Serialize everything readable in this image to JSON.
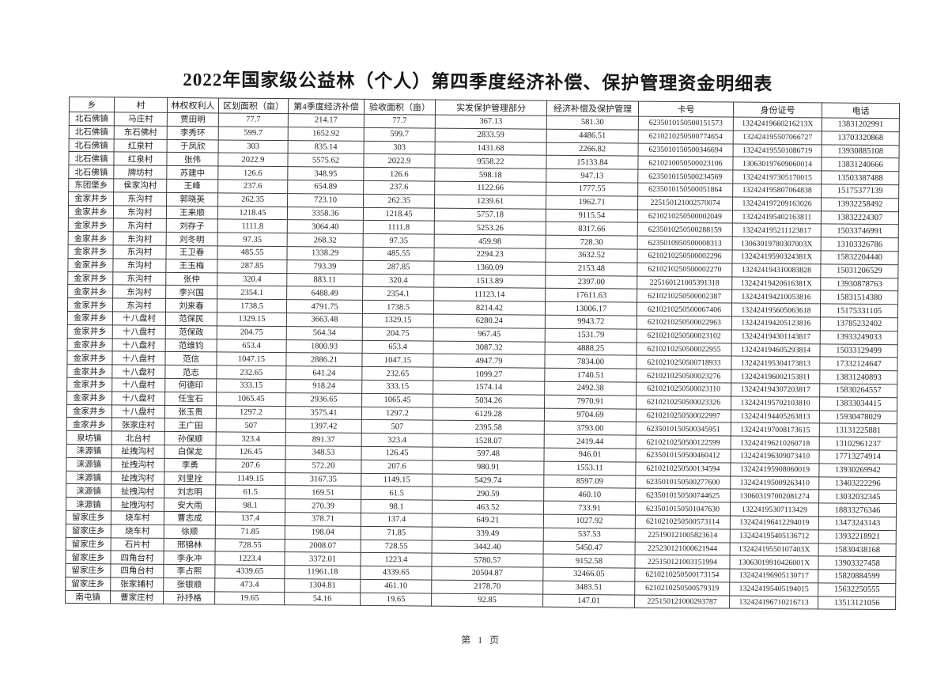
{
  "page": {
    "title": "2022年国家级公益林（个人）第四季度经济补偿、保护管理资金明细表",
    "footer": "第 1 页"
  },
  "table": {
    "headers": [
      "乡",
      "村",
      "林权权利人",
      "区划面积（亩）",
      "第4季度经济补偿",
      "验收面积（亩）",
      "实发保护管理部分",
      "经济补偿及保护管理",
      "卡号",
      "身份证号",
      "电话"
    ],
    "rows": [
      [
        "北石佛镇",
        "马庄村",
        "贾田明",
        "77.7",
        "214.17",
        "77.7",
        "367.13",
        "581.30",
        "6235010150500151573",
        "13242419660216213X",
        "13831202991"
      ],
      [
        "北石佛镇",
        "东石佛村",
        "李秀环",
        "599.7",
        "1652.92",
        "599.7",
        "2833.59",
        "4486.51",
        "6210210250500774654",
        "132424195507066727",
        "13703320868"
      ],
      [
        "北石佛镇",
        "红泉村",
        "于凤欣",
        "303",
        "835.14",
        "303",
        "1431.68",
        "2266.82",
        "6235010150500346694",
        "132424195501086719",
        "13930885108"
      ],
      [
        "北石佛镇",
        "红泉村",
        "张伟",
        "2022.9",
        "5575.62",
        "2022.9",
        "9558.22",
        "15133.84",
        "6210210050500023106",
        "130630197609060014",
        "13831240666"
      ],
      [
        "北石佛镇",
        "牌坊村",
        "苏建中",
        "126.6",
        "348.95",
        "126.6",
        "598.18",
        "947.13",
        "6235010150500234569",
        "132424197305170015",
        "13503387488"
      ],
      [
        "东团堡乡",
        "侯家沟村",
        "王峰",
        "237.6",
        "654.89",
        "237.6",
        "1122.66",
        "1777.55",
        "6235010150500051864",
        "132424195807064838",
        "15175377139"
      ],
      [
        "金家井乡",
        "东沟村",
        "郭晓英",
        "262.35",
        "723.10",
        "262.35",
        "1239.61",
        "1962.71",
        "225150121002570074",
        "132424197209163026",
        "13932258492"
      ],
      [
        "金家井乡",
        "东沟村",
        "王来顺",
        "1218.45",
        "3358.36",
        "1218.45",
        "5757.18",
        "9115.54",
        "6210210250500002049",
        "132424195402163811",
        "13832224307"
      ],
      [
        "金家井乡",
        "东沟村",
        "刘存子",
        "1111.8",
        "3064.40",
        "1111.8",
        "5253.26",
        "8317.66",
        "6235010250500288159",
        "132424195211123817",
        "15033746991"
      ],
      [
        "金家井乡",
        "东沟村",
        "刘冬明",
        "97.35",
        "268.32",
        "97.35",
        "459.98",
        "728.30",
        "6235010950500008313",
        "13063019780307003X",
        "13103326786"
      ],
      [
        "金家井乡",
        "东沟村",
        "王卫春",
        "485.55",
        "1338.29",
        "485.55",
        "2294.23",
        "3632.52",
        "6210210250500002296",
        "13242419590324381X",
        "15832204440"
      ],
      [
        "金家井乡",
        "东沟村",
        "王玉梅",
        "287.85",
        "793.39",
        "287.85",
        "1360.09",
        "2153.48",
        "6210210250500002270",
        "132424194310083828",
        "15031206529"
      ],
      [
        "金家井乡",
        "东沟村",
        "张仲",
        "320.4",
        "883.11",
        "320.4",
        "1513.89",
        "2397.00",
        "225160121005391318",
        "13242419420616381X",
        "13930878763"
      ],
      [
        "金家井乡",
        "东沟村",
        "李兴国",
        "2354.1",
        "6488.49",
        "2354.1",
        "11123.14",
        "17611.63",
        "6210210250500002387",
        "132424194210053816",
        "15831514380"
      ],
      [
        "金家井乡",
        "东沟村",
        "刘来春",
        "1738.5",
        "4791.75",
        "1738.5",
        "8214.42",
        "13006.17",
        "6210210250500067406",
        "132424195605063618",
        "15175331105"
      ],
      [
        "金家井乡",
        "十八盘村",
        "范保民",
        "1329.15",
        "3663.48",
        "1329.15",
        "6280.24",
        "9943.72",
        "6210210250500022963",
        "132424194205123816",
        "13785232402"
      ],
      [
        "金家井乡",
        "十八盘村",
        "范保政",
        "204.75",
        "564.34",
        "204.75",
        "967.45",
        "1531.79",
        "6210210250500023102",
        "132424194301143817",
        "13933249033"
      ],
      [
        "金家井乡",
        "十八盘村",
        "范维钧",
        "653.4",
        "1800.93",
        "653.4",
        "3087.32",
        "4888.25",
        "6210210250500022955",
        "132424194605293814",
        "15033129499"
      ],
      [
        "金家井乡",
        "十八盘村",
        "范信",
        "1047.15",
        "2886.21",
        "1047.15",
        "4947.79",
        "7834.00",
        "6210210250500718933",
        "132424195304173813",
        "17332124647"
      ],
      [
        "金家井乡",
        "十八盘村",
        "范志",
        "232.65",
        "641.24",
        "232.65",
        "1099.27",
        "1740.51",
        "6210210250500023276",
        "132424196002153811",
        "13831240893"
      ],
      [
        "金家井乡",
        "十八盘村",
        "何德印",
        "333.15",
        "918.24",
        "333.15",
        "1574.14",
        "2492.38",
        "6210210250500023110",
        "132424194307203817",
        "15830264557"
      ],
      [
        "金家井乡",
        "十八盘村",
        "任宝石",
        "1065.45",
        "2936.65",
        "1065.45",
        "5034.26",
        "7970.91",
        "6210210250500023326",
        "132424195702103810",
        "13833034415"
      ],
      [
        "金家井乡",
        "十八盘村",
        "张玉贵",
        "1297.2",
        "3575.41",
        "1297.2",
        "6129.28",
        "9704.69",
        "6210210250500022997",
        "132424194405263813",
        "15930478029"
      ],
      [
        "金家井乡",
        "张家庄村",
        "王广田",
        "507",
        "1397.42",
        "507",
        "2395.58",
        "3793.00",
        "6235010150500345951",
        "132424197008173615",
        "13131225881"
      ],
      [
        "泉坊镇",
        "北台村",
        "孙保顺",
        "323.4",
        "891.37",
        "323.4",
        "1528.07",
        "2419.44",
        "6210210250500122599",
        "132424196210260718",
        "13102961237"
      ],
      [
        "涞源镇",
        "扯拽沟村",
        "白保龙",
        "126.45",
        "348.53",
        "126.45",
        "597.48",
        "946.01",
        "6235010150500460412",
        "132424196309073410",
        "17713274914"
      ],
      [
        "涞源镇",
        "扯拽沟村",
        "李勇",
        "207.6",
        "572.20",
        "207.6",
        "980.91",
        "1553.11",
        "6210210250500134594",
        "132424195908060019",
        "13930269942"
      ],
      [
        "涞源镇",
        "扯拽沟村",
        "刘里拴",
        "1149.15",
        "3167.35",
        "1149.15",
        "5429.74",
        "8597.09",
        "6235010150500277600",
        "132424195009263410",
        "13403222296"
      ],
      [
        "涞源镇",
        "扯拽沟村",
        "刘志明",
        "61.5",
        "169.51",
        "61.5",
        "290.59",
        "460.10",
        "6235010150500744625",
        "130603197002081274",
        "13032032345"
      ],
      [
        "涞源镇",
        "扯拽沟村",
        "安大雨",
        "98.1",
        "270.39",
        "98.1",
        "463.52",
        "733.91",
        "6235010150501047630",
        "13224195307113429",
        "18833276346"
      ],
      [
        "留家庄乡",
        "烧车村",
        "曹志成",
        "137.4",
        "378.71",
        "137.4",
        "649.21",
        "1027.92",
        "6210210250500573114",
        "132424196412294019",
        "13473243143"
      ],
      [
        "留家庄乡",
        "烧车村",
        "徐顺",
        "71.85",
        "198.04",
        "71.85",
        "339.49",
        "537.53",
        "225190121005823614",
        "132424195405136712",
        "13932218921"
      ],
      [
        "留家庄乡",
        "石片村",
        "邢锦林",
        "728.55",
        "2008.07",
        "728.55",
        "3442.40",
        "5450.47",
        "225230121000621944",
        "13242419550107403X",
        "15830438168"
      ],
      [
        "留家庄乡",
        "四角台村",
        "李永冲",
        "1223.4",
        "3372.01",
        "1223.4",
        "5780.57",
        "9152.58",
        "225150121003151994",
        "13063019910426001X",
        "13903327458"
      ],
      [
        "留家庄乡",
        "四角台村",
        "李占熙",
        "4339.65",
        "11961.18",
        "4339.65",
        "20504.87",
        "32466.05",
        "6210210250500173154",
        "132424196905130717",
        "15820884599"
      ],
      [
        "留家庄乡",
        "张家铺村",
        "张银顺",
        "473.4",
        "1304.81",
        "461.10",
        "2178.70",
        "3483.51",
        "6210210250500579319",
        "132424195405194015",
        "15632250555"
      ],
      [
        "南屯镇",
        "曹家庄村",
        "孙抒格",
        "19.65",
        "54.16",
        "19.65",
        "92.85",
        "147.01",
        "225150121000293787",
        "132424196710216713",
        "13513121056"
      ]
    ]
  }
}
